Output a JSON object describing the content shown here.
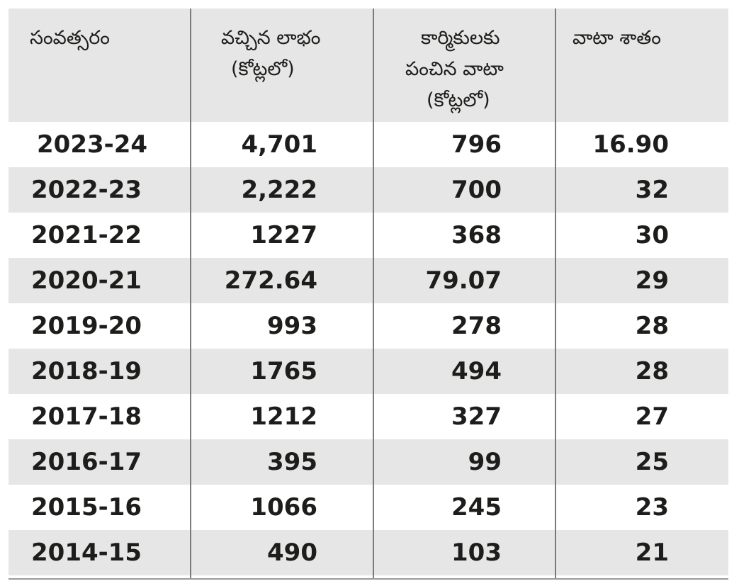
{
  "headers": {
    "year": "సంవత్సరం",
    "profit_line1": "వచ్చిన లాభం",
    "profit_line2": "(కోట్లలో)",
    "share_line1": "కార్మికులకు",
    "share_line2": "పంచిన వాటా",
    "share_line3": "(కోట్లలో)",
    "percent": "వాటా శాతం"
  },
  "colors": {
    "band": "#e6e6e6",
    "text": "#1d1d1b",
    "divider": "#7a7a7a"
  },
  "chart_data": {
    "type": "table",
    "columns": [
      "సంవత్సరం",
      "వచ్చిన లాభం (కోట్లలో)",
      "కార్మికులకు పంచిన వాటా (కోట్లలో)",
      "వాటా శాతం"
    ],
    "rows": [
      {
        "year": "2023-24",
        "profit": "4,701",
        "share": "796",
        "percent": "16.90"
      },
      {
        "year": "2022-23",
        "profit": "2,222",
        "share": "700",
        "percent": "32"
      },
      {
        "year": "2021-22",
        "profit": "1227",
        "share": "368",
        "percent": "30"
      },
      {
        "year": "2020-21",
        "profit": "272.64",
        "share": "79.07",
        "percent": "29"
      },
      {
        "year": "2019-20",
        "profit": "993",
        "share": "278",
        "percent": "28"
      },
      {
        "year": "2018-19",
        "profit": "1765",
        "share": "494",
        "percent": "28"
      },
      {
        "year": "2017-18",
        "profit": "1212",
        "share": "327",
        "percent": "27"
      },
      {
        "year": "2016-17",
        "profit": "395",
        "share": "99",
        "percent": "25"
      },
      {
        "year": "2015-16",
        "profit": "1066",
        "share": "245",
        "percent": "23"
      },
      {
        "year": "2014-15",
        "profit": "490",
        "share": "103",
        "percent": "21"
      }
    ]
  }
}
